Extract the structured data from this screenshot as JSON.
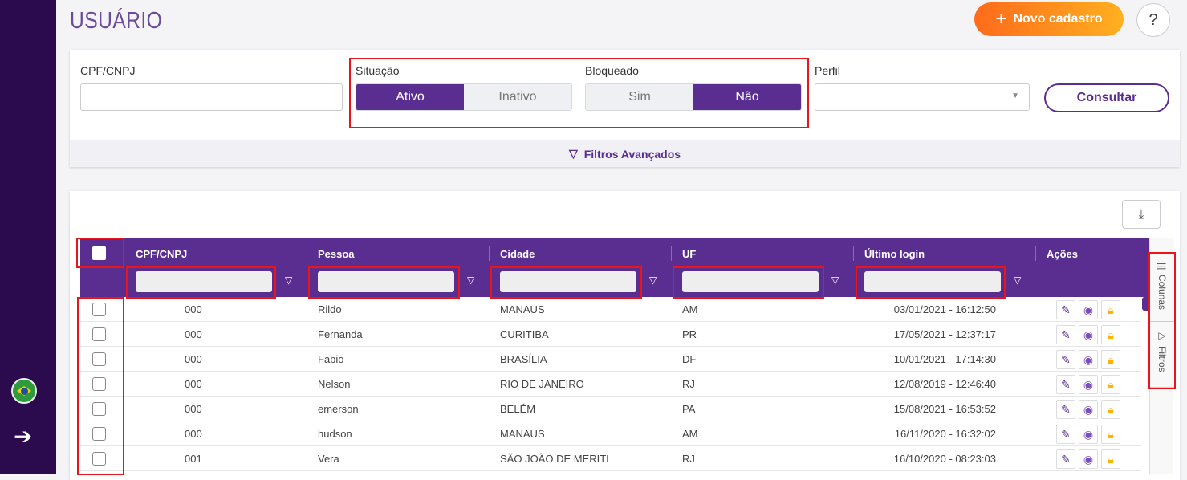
{
  "page": {
    "title": "USUÁRIO",
    "new_button": "Novo cadastro",
    "help": "?"
  },
  "filters": {
    "cpf_label": "CPF/CNPJ",
    "cpf_value": "",
    "situacao_label": "Situação",
    "situacao_options": [
      "Ativo",
      "Inativo"
    ],
    "situacao_selected": "Ativo",
    "bloqueado_label": "Bloqueado",
    "bloqueado_options": [
      "Sim",
      "Não"
    ],
    "bloqueado_selected": "Não",
    "perfil_label": "Perfil",
    "perfil_value": "",
    "consultar": "Consultar",
    "advanced": "Filtros Avançados"
  },
  "table": {
    "columns": [
      "CPF/CNPJ",
      "Pessoa",
      "Cidade",
      "UF",
      "Último login",
      "Ações"
    ],
    "rows": [
      [
        "000",
        "Rildo",
        "MANAUS",
        "AM",
        "03/01/2021 - 16:12:50"
      ],
      [
        "000",
        "Fernanda",
        "CURITIBA",
        "PR",
        "17/05/2021 - 12:37:17"
      ],
      [
        "000",
        "Fabio",
        "BRASÍLIA",
        "DF",
        "10/01/2021 - 17:14:30"
      ],
      [
        "000",
        "Nelson",
        "RIO DE JANEIRO",
        "RJ",
        "12/08/2019 - 12:46:40"
      ],
      [
        "000",
        "emerson",
        "BELÉM",
        "PA",
        "15/08/2021 - 16:53:52"
      ],
      [
        "000",
        "hudson",
        "MANAUS",
        "AM",
        "16/11/2020 - 16:32:02"
      ],
      [
        "001",
        "Vera",
        "SÃO JOÃO DE MERITI",
        "RJ",
        "16/10/2020 - 08:23:03"
      ]
    ],
    "side_tabs": [
      "Colunas",
      "Filtros"
    ]
  },
  "colors": {
    "sidebar": "#2b0a4d",
    "primary": "#5a2d91",
    "accent": "#ff8c1a",
    "lock": "#ffb300",
    "annotation": "#e8151b"
  }
}
